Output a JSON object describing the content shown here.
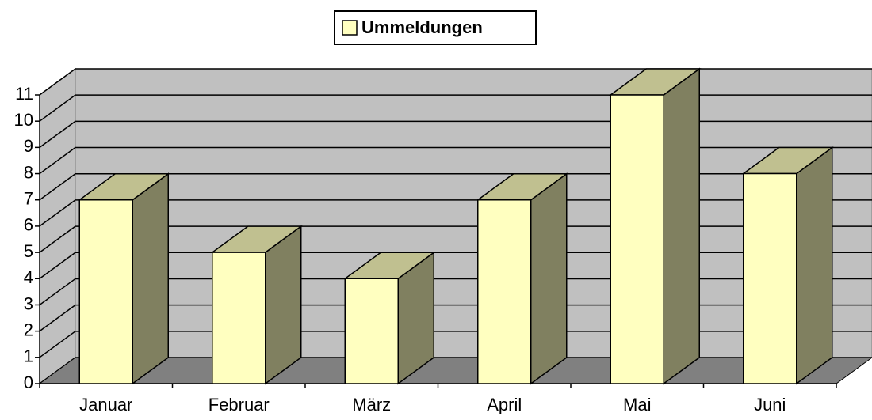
{
  "chart_data": {
    "type": "bar3d",
    "categories": [
      "Januar",
      "Februar",
      "März",
      "April",
      "Mai",
      "Juni"
    ],
    "series": [
      {
        "name": "Ummeldungen",
        "color": "#ffffc0",
        "values": [
          7,
          5,
          4,
          7,
          11,
          8
        ]
      }
    ],
    "ylim": [
      0,
      11
    ],
    "yticks": [
      0,
      1,
      2,
      3,
      4,
      5,
      6,
      7,
      8,
      9,
      10,
      11
    ],
    "grid": true,
    "legend": "top"
  }
}
